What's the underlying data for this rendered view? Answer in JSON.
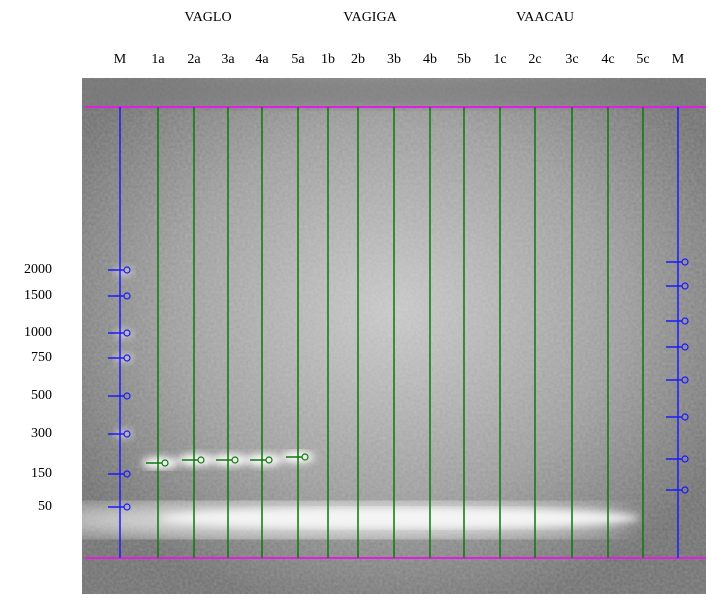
{
  "groups": [
    "VAGLO",
    "VAGIGA",
    "VAACAU"
  ],
  "lanes": [
    "M",
    "1a",
    "2a",
    "3a",
    "4a",
    "5a",
    "1b",
    "2b",
    "3b",
    "4b",
    "5b",
    "1c",
    "2c",
    "3c",
    "4c",
    "5c",
    "M"
  ],
  "marker_sizes": [
    2000,
    1500,
    1000,
    750,
    500,
    300,
    150,
    50
  ]
}
